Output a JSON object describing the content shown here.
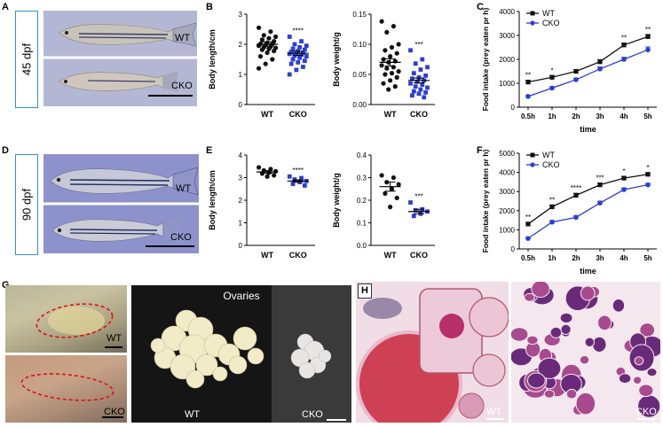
{
  "panels": {
    "A": {
      "label": "A",
      "stage": "45 dpf",
      "wt_label": "WT",
      "cko_label": "CKO"
    },
    "B": {
      "label": "B"
    },
    "C": {
      "label": "C"
    },
    "D": {
      "label": "D",
      "stage": "90 dpf",
      "wt_label": "WT",
      "cko_label": "CKO"
    },
    "E": {
      "label": "E"
    },
    "F": {
      "label": "F"
    },
    "G": {
      "label": "G",
      "ovaries_title": "Ovaries",
      "wt_label": "WT",
      "cko_label": "CKO"
    },
    "H": {
      "label": "H",
      "wt_label": "WT",
      "cko_label": "CKO"
    }
  },
  "colors": {
    "wt": "#111111",
    "cko": "#2d3fd1",
    "frame": "#3a8fc0",
    "ovary_outline": "#dd1111"
  },
  "chart_data": [
    {
      "id": "B-length",
      "type": "scatter",
      "ylabel": "Body length/cm",
      "categories": [
        "WT",
        "CKO"
      ],
      "ylim": [
        0,
        3
      ],
      "yticks": [
        0,
        1,
        2,
        3
      ],
      "mean": [
        2.0,
        1.7
      ],
      "sem": [
        0.08,
        0.07
      ],
      "significance": "****",
      "series": [
        {
          "name": "WT",
          "values": [
            2.55,
            2.42,
            2.3,
            2.25,
            2.2,
            2.15,
            2.1,
            2.05,
            2.02,
            2.0,
            1.98,
            1.95,
            1.92,
            1.9,
            1.88,
            1.85,
            1.82,
            1.78,
            1.72,
            1.6,
            1.5,
            1.35,
            1.2
          ]
        },
        {
          "name": "CKO",
          "values": [
            2.25,
            2.1,
            2.0,
            1.95,
            1.9,
            1.85,
            1.82,
            1.78,
            1.75,
            1.72,
            1.7,
            1.68,
            1.65,
            1.62,
            1.6,
            1.55,
            1.5,
            1.45,
            1.4,
            1.35,
            1.25,
            1.15,
            1.0
          ]
        }
      ]
    },
    {
      "id": "B-weight",
      "type": "scatter",
      "ylabel": "Body weight/g",
      "categories": [
        "WT",
        "CKO"
      ],
      "ylim": [
        0,
        0.15
      ],
      "yticks": [
        "0.00",
        "0.05",
        "0.10",
        "0.15"
      ],
      "mean": [
        0.07,
        0.04
      ],
      "sem": [
        0.006,
        0.004
      ],
      "significance": "***",
      "series": [
        {
          "name": "WT",
          "values": [
            0.138,
            0.13,
            0.12,
            0.1,
            0.095,
            0.09,
            0.085,
            0.08,
            0.075,
            0.072,
            0.07,
            0.065,
            0.062,
            0.06,
            0.055,
            0.052,
            0.05,
            0.045,
            0.04,
            0.035,
            0.03,
            0.025
          ]
        },
        {
          "name": "CKO",
          "values": [
            0.09,
            0.075,
            0.068,
            0.062,
            0.058,
            0.052,
            0.048,
            0.045,
            0.043,
            0.04,
            0.038,
            0.035,
            0.033,
            0.03,
            0.028,
            0.025,
            0.022,
            0.02,
            0.018,
            0.015,
            0.012
          ]
        }
      ]
    },
    {
      "id": "C-intake",
      "type": "line",
      "ylabel": "Food intake (prey eaten pr h)",
      "xlabel": "time",
      "categories": [
        "0.5h",
        "1h",
        "2h",
        "3h",
        "4h",
        "5h"
      ],
      "ylim": [
        0,
        4000
      ],
      "yticks": [
        0,
        1000,
        2000,
        3000,
        4000
      ],
      "legend": [
        "WT",
        "CKO"
      ],
      "significance": [
        "**",
        "*",
        "",
        "",
        "**",
        "**"
      ],
      "series": [
        {
          "name": "WT",
          "values": [
            1050,
            1250,
            1500,
            1900,
            2600,
            2950
          ],
          "err": [
            80,
            70,
            70,
            90,
            80,
            90
          ]
        },
        {
          "name": "CKO",
          "values": [
            450,
            800,
            1150,
            1600,
            2000,
            2400
          ],
          "err": [
            40,
            60,
            60,
            80,
            90,
            120
          ]
        }
      ]
    },
    {
      "id": "E-length",
      "type": "scatter",
      "ylabel": "Body length/cm",
      "categories": [
        "WT",
        "CKO"
      ],
      "ylim": [
        0,
        4
      ],
      "yticks": [
        0,
        1,
        2,
        3,
        4
      ],
      "mean": [
        3.25,
        2.85
      ],
      "sem": [
        0.06,
        0.05
      ],
      "significance": "****",
      "series": [
        {
          "name": "WT",
          "values": [
            3.45,
            3.38,
            3.32,
            3.28,
            3.22,
            3.18,
            3.1,
            3.05
          ]
        },
        {
          "name": "CKO",
          "values": [
            3.05,
            2.98,
            2.92,
            2.85,
            2.8,
            2.72,
            2.65
          ]
        }
      ]
    },
    {
      "id": "E-weight",
      "type": "scatter",
      "ylabel": "Body weight/g",
      "categories": [
        "WT",
        "CKO"
      ],
      "ylim": [
        0,
        0.4
      ],
      "yticks": [
        "0.0",
        "0.1",
        "0.2",
        "0.3",
        "0.4"
      ],
      "mean": [
        0.26,
        0.15
      ],
      "sem": [
        0.02,
        0.01
      ],
      "significance": "***",
      "series": [
        {
          "name": "WT",
          "values": [
            0.31,
            0.3,
            0.28,
            0.27,
            0.25,
            0.23,
            0.21,
            0.17
          ]
        },
        {
          "name": "CKO",
          "values": [
            0.19,
            0.16,
            0.155,
            0.15,
            0.14,
            0.13
          ]
        }
      ]
    },
    {
      "id": "F-intake",
      "type": "line",
      "ylabel": "Food intake (prey eaten pr h)",
      "xlabel": "time",
      "categories": [
        "0.5h",
        "1h",
        "2h",
        "3h",
        "4h",
        "5h"
      ],
      "ylim": [
        0,
        5000
      ],
      "yticks": [
        0,
        1000,
        2000,
        3000,
        4000,
        5000
      ],
      "legend": [
        "WT",
        "CKO"
      ],
      "significance": [
        "**",
        "**",
        "****",
        "***",
        "*",
        "*"
      ],
      "series": [
        {
          "name": "WT",
          "values": [
            1300,
            2200,
            2800,
            3350,
            3700,
            3900
          ],
          "err": [
            90,
            100,
            110,
            100,
            90,
            80
          ]
        },
        {
          "name": "CKO",
          "values": [
            550,
            1400,
            1650,
            2400,
            3100,
            3350
          ],
          "err": [
            60,
            90,
            80,
            100,
            90,
            80
          ]
        }
      ]
    }
  ]
}
